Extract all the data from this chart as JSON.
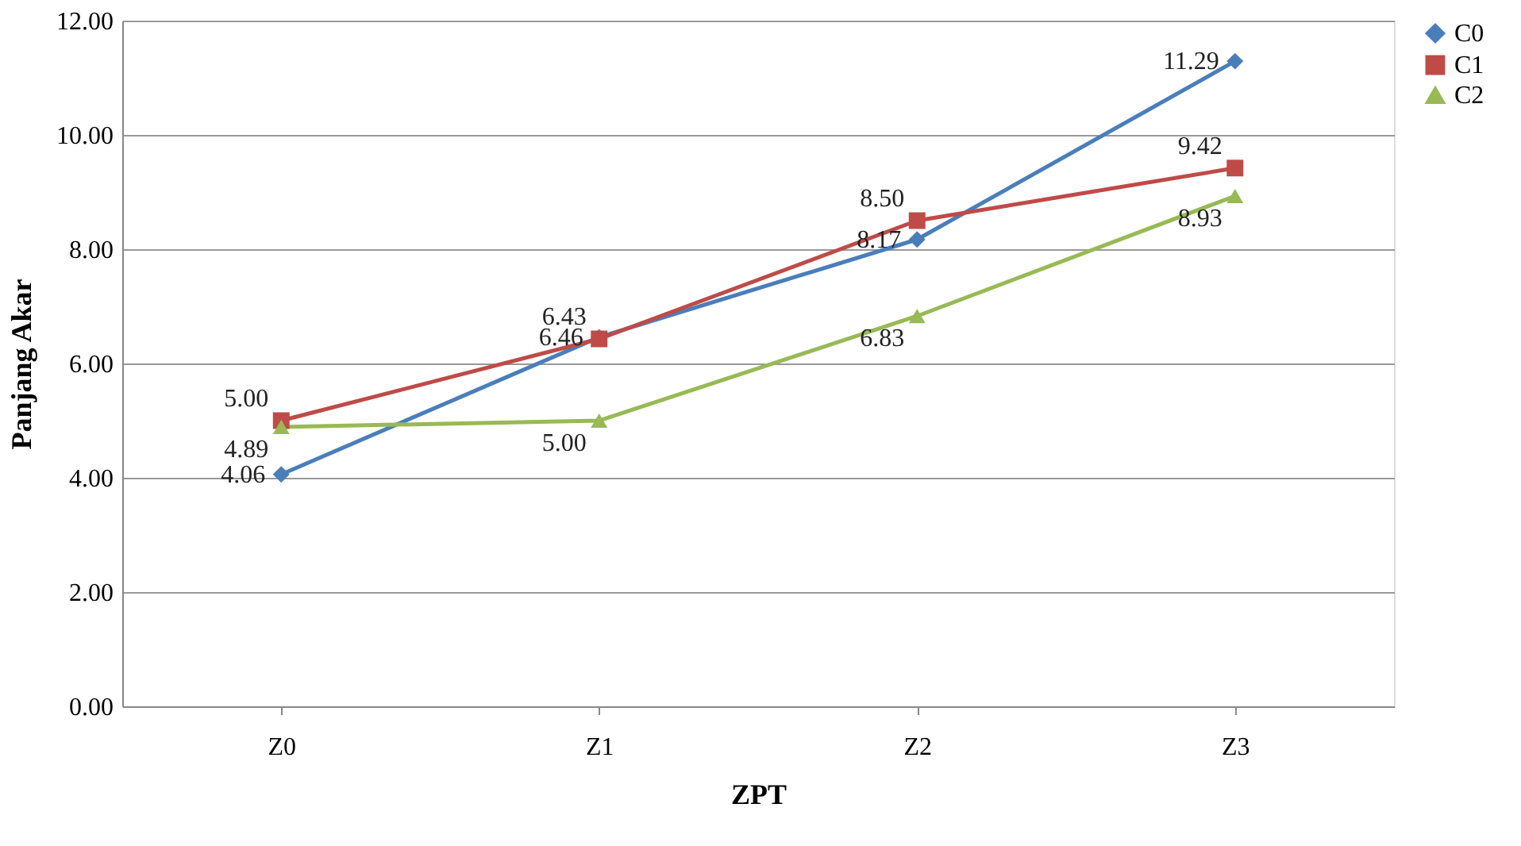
{
  "chart_data": {
    "type": "line",
    "xlabel": "ZPT",
    "ylabel": "Panjang Akar",
    "categories": [
      "Z0",
      "Z1",
      "Z2",
      "Z3"
    ],
    "series": [
      {
        "name": "C0",
        "color": "#4a7ebb",
        "marker": "diamond",
        "values": [
          4.06,
          6.46,
          8.17,
          11.29
        ],
        "value_labels": [
          "4.06",
          "6.46",
          "8.17",
          "11.29"
        ]
      },
      {
        "name": "C1",
        "color": "#be4b48",
        "marker": "square",
        "values": [
          5.0,
          6.43,
          8.5,
          9.42
        ],
        "value_labels": [
          "5.00",
          "6.43",
          "8.50",
          "9.42"
        ]
      },
      {
        "name": "C2",
        "color": "#98b954",
        "marker": "triangle",
        "values": [
          4.89,
          5.0,
          6.83,
          8.93
        ],
        "value_labels": [
          "4.89",
          "5.00",
          "6.83",
          "8.93"
        ]
      }
    ],
    "ylim": [
      0,
      12
    ],
    "yticks": [
      {
        "value": 0,
        "label": "0.00"
      },
      {
        "value": 2,
        "label": "2.00"
      },
      {
        "value": 4,
        "label": "4.00"
      },
      {
        "value": 6,
        "label": "6.00"
      },
      {
        "value": 8,
        "label": "8.00"
      },
      {
        "value": 10,
        "label": "10.00"
      },
      {
        "value": 12,
        "label": "12.00"
      }
    ],
    "grid": "y",
    "legend": "right",
    "line_style": "solid"
  }
}
